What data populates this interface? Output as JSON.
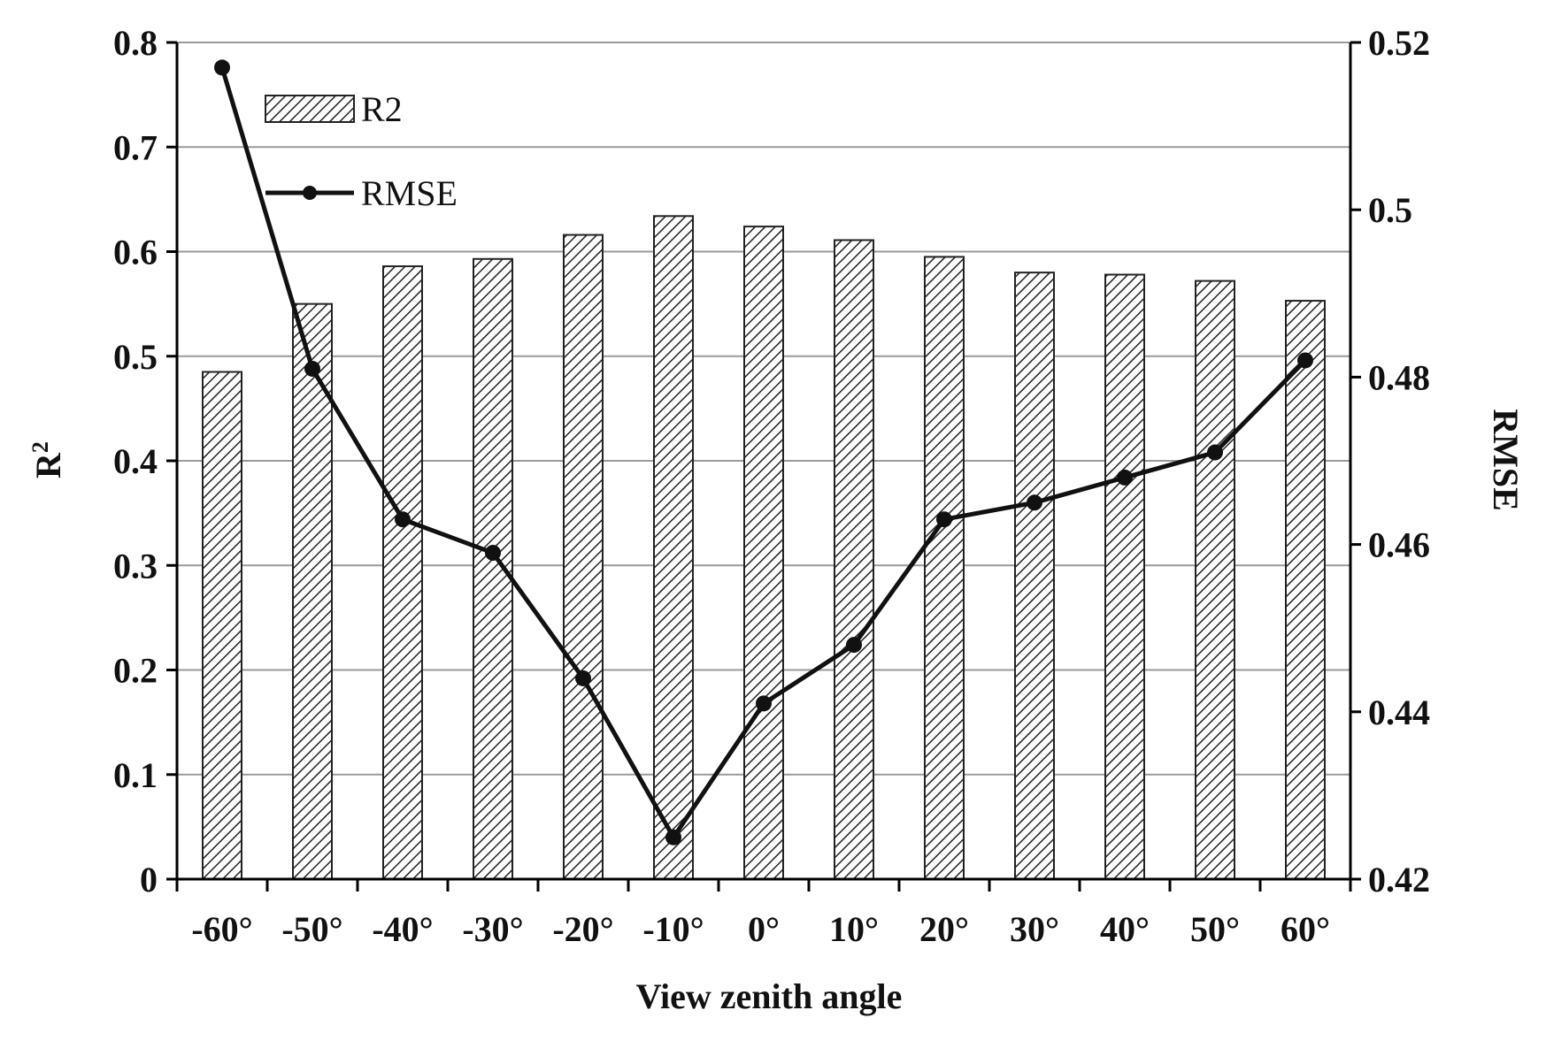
{
  "chart_data": {
    "type": "bar",
    "categories": [
      "-60°",
      "-50°",
      "-40°",
      "-30°",
      "-20°",
      "-10°",
      "0°",
      "10°",
      "20°",
      "30°",
      "40°",
      "50°",
      "60°"
    ],
    "series": [
      {
        "name": "R2",
        "type": "bar",
        "axis": "left",
        "values": [
          0.485,
          0.55,
          0.586,
          0.593,
          0.616,
          0.634,
          0.624,
          0.611,
          0.595,
          0.58,
          0.578,
          0.572,
          0.553
        ]
      },
      {
        "name": "RMSE",
        "type": "line",
        "axis": "right",
        "values": [
          0.517,
          0.481,
          0.463,
          0.459,
          0.444,
          0.425,
          0.441,
          0.448,
          0.463,
          0.465,
          0.468,
          0.471,
          0.482
        ]
      }
    ],
    "xlabel": "View zenith angle",
    "ylabel_left": "R",
    "ylabel_left_sup": "2",
    "ylabel_right": "RMSE",
    "ylim_left": [
      0,
      0.8
    ],
    "ylim_right": [
      0.42,
      0.52
    ],
    "yticks_left": [
      "0",
      "0.1",
      "0.2",
      "0.3",
      "0.4",
      "0.5",
      "0.6",
      "0.7",
      "0.8"
    ],
    "yticks_right": [
      "0.42",
      "0.44",
      "0.46",
      "0.48",
      "0.5",
      "0.52"
    ],
    "grid": true,
    "legend": "top-left",
    "colors": {
      "line": "#111111",
      "bar_fill": "#ffffff",
      "hatch": "#222222",
      "grid": "#9a9a9a",
      "axis": "#000000"
    }
  }
}
